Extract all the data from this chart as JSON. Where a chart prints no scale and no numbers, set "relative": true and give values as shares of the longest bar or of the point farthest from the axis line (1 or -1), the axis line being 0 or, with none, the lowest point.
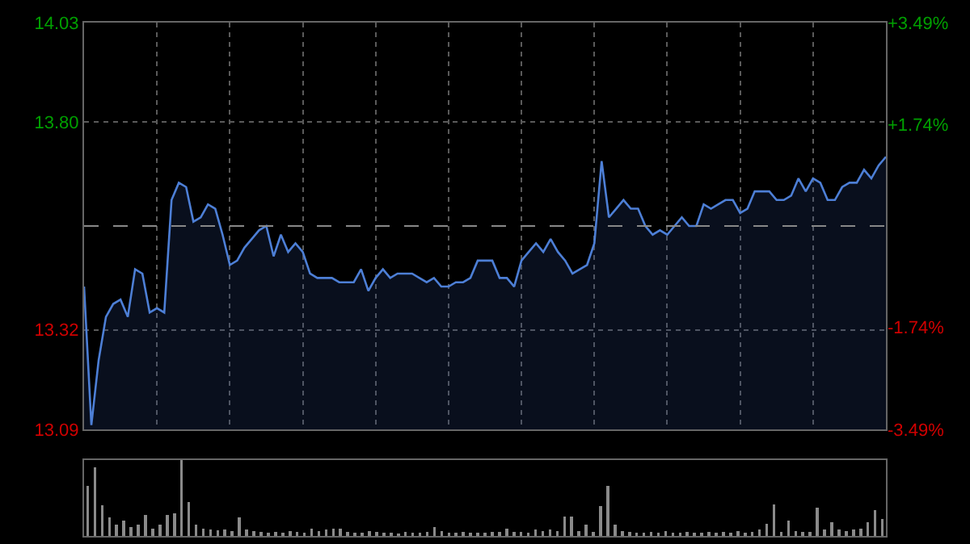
{
  "chart_data": [
    {
      "type": "area",
      "categories": [
        null,
        null,
        null,
        null,
        null,
        null,
        null,
        null,
        null,
        null,
        null,
        null,
        null,
        null,
        null,
        null,
        null,
        null,
        null,
        null,
        null,
        null,
        null,
        null,
        null,
        null,
        null,
        null,
        null,
        null,
        null,
        null,
        null,
        null,
        null,
        null,
        null,
        null,
        null,
        null,
        null,
        null,
        null,
        null,
        null,
        null,
        null,
        null,
        null,
        null,
        null,
        null,
        null,
        null,
        null,
        null,
        null,
        null,
        null,
        null,
        null,
        null,
        null,
        null,
        null,
        null,
        null,
        null,
        null,
        null,
        null,
        null,
        null,
        null,
        null,
        null,
        null,
        null,
        null,
        null,
        null,
        null,
        null,
        null,
        null,
        null,
        null,
        null,
        null,
        null,
        null,
        null,
        null,
        null,
        null,
        null,
        null,
        null,
        null,
        null,
        null,
        null,
        null,
        null,
        null,
        null,
        null,
        null,
        null,
        null,
        null
      ],
      "series": [
        {
          "color": "#4d7fd6",
          "values": [
            13.42,
            13.1,
            13.25,
            13.35,
            13.38,
            13.39,
            13.35,
            13.46,
            13.45,
            13.36,
            13.37,
            13.36,
            13.62,
            13.66,
            13.65,
            13.57,
            13.58,
            13.61,
            13.6,
            13.54,
            13.47,
            13.48,
            13.51,
            13.53,
            13.55,
            13.56,
            13.49,
            13.54,
            13.5,
            13.52,
            13.5,
            13.45,
            13.44,
            13.44,
            13.44,
            13.43,
            13.43,
            13.43,
            13.46,
            13.41,
            13.44,
            13.46,
            13.44,
            13.45,
            13.45,
            13.45,
            13.44,
            13.43,
            13.44,
            13.42,
            13.42,
            13.43,
            13.43,
            13.44,
            13.48,
            13.48,
            13.48,
            13.44,
            13.44,
            13.42,
            13.48,
            13.5,
            13.52,
            13.5,
            13.53,
            13.5,
            13.48,
            13.45,
            13.46,
            13.47,
            13.52,
            13.71,
            13.58,
            13.6,
            13.62,
            13.6,
            13.6,
            13.56,
            13.54,
            13.55,
            13.54,
            13.56,
            13.58,
            13.56,
            13.56,
            13.61,
            13.6,
            13.61,
            13.62,
            13.62,
            13.59,
            13.6,
            13.64,
            13.64,
            13.64,
            13.62,
            13.62,
            13.63,
            13.67,
            13.64,
            13.67,
            13.66,
            13.62,
            13.62,
            13.65,
            13.66,
            13.66,
            13.69,
            13.67,
            13.7,
            13.72
          ]
        }
      ],
      "ylim": [
        13.09,
        14.03
      ],
      "yticks": [
        13.09,
        13.32,
        {
          "value": 13.8,
          "label": "13.80"
        },
        14.03
      ],
      "y2lim": [
        -3.49,
        3.49
      ],
      "y2ticks": [
        {
          "value": -3.49,
          "label": "-3.49%"
        },
        {
          "value": -1.74,
          "label": "-1.74%"
        },
        {
          "value": 1.74,
          "label": "+1.74%"
        },
        {
          "value": 3.49,
          "label": "+3.49%"
        }
      ],
      "ref_lines": [
        {
          "axis": "y",
          "value": 13.56,
          "color": "#888888",
          "line_style": "dashed"
        }
      ],
      "grid": true,
      "tick_labels": "y"
    },
    {
      "type": "bar",
      "relative": true,
      "categories": [
        null,
        null,
        null,
        null,
        null,
        null,
        null,
        null,
        null,
        null,
        null,
        null,
        null,
        null,
        null,
        null,
        null,
        null,
        null,
        null,
        null,
        null,
        null,
        null,
        null,
        null,
        null,
        null,
        null,
        null,
        null,
        null,
        null,
        null,
        null,
        null,
        null,
        null,
        null,
        null,
        null,
        null,
        null,
        null,
        null,
        null,
        null,
        null,
        null,
        null,
        null,
        null,
        null,
        null,
        null,
        null,
        null,
        null,
        null,
        null,
        null,
        null,
        null,
        null,
        null,
        null,
        null,
        null,
        null,
        null,
        null,
        null,
        null,
        null,
        null,
        null,
        null,
        null,
        null,
        null,
        null,
        null,
        null,
        null,
        null,
        null,
        null,
        null,
        null,
        null,
        null,
        null,
        null,
        null,
        null,
        null,
        null,
        null,
        null,
        null,
        null,
        null,
        null,
        null,
        null,
        null,
        null,
        null,
        null,
        null,
        null
      ],
      "series": [
        {
          "color": "#8a8a8a",
          "values": [
            0.66,
            0.9,
            0.4,
            0.25,
            0.15,
            0.2,
            0.12,
            0.15,
            0.28,
            0.1,
            0.15,
            0.28,
            0.3,
            1,
            0.45,
            0.15,
            0.1,
            0.08,
            0.07,
            0.08,
            0.06,
            0.24,
            0.08,
            0.06,
            0.05,
            0.04,
            0.05,
            0.04,
            0.06,
            0.05,
            0.04,
            0.1,
            0.06,
            0.08,
            0.1,
            0.1,
            0.05,
            0.04,
            0.04,
            0.06,
            0.05,
            0.04,
            0.04,
            0.03,
            0.05,
            0.04,
            0.04,
            0.05,
            0.12,
            0.06,
            0.04,
            0.04,
            0.05,
            0.04,
            0.04,
            0.04,
            0.05,
            0.05,
            0.1,
            0.05,
            0.05,
            0.04,
            0.08,
            0.06,
            0.08,
            0.06,
            0.26,
            0.26,
            0.06,
            0.15,
            0.05,
            0.39,
            0.66,
            0.15,
            0.06,
            0.05,
            0.04,
            0.04,
            0.05,
            0.04,
            0.06,
            0.04,
            0.04,
            0.05,
            0.04,
            0.04,
            0.05,
            0.04,
            0.05,
            0.04,
            0.06,
            0.04,
            0.05,
            0.08,
            0.16,
            0.41,
            0.05,
            0.2,
            0.06,
            0.05,
            0.05,
            0.37,
            0.08,
            0.18,
            0.08,
            0.06,
            0.08,
            0.1,
            0.18,
            0.34,
            0.22
          ]
        }
      ],
      "tick_labels": false
    }
  ]
}
